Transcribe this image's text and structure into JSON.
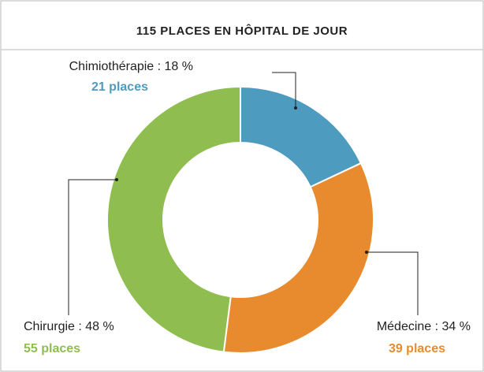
{
  "chart_data": {
    "type": "donut",
    "title": "115 PLACES EN HÔPITAL DE JOUR",
    "categories": [
      "Chimiothérapie",
      "Médecine",
      "Chirurgie"
    ],
    "values": [
      18,
      34,
      48
    ],
    "value_labels": [
      "Chimiothérapie : 18 %",
      "Médecine : 34 %",
      "Chirurgie : 48 %"
    ],
    "sublabels": [
      "21 places",
      "39 places",
      "55 places"
    ],
    "colors": [
      "#4e9bc0",
      "#e88b2e",
      "#8fbd4f"
    ]
  }
}
